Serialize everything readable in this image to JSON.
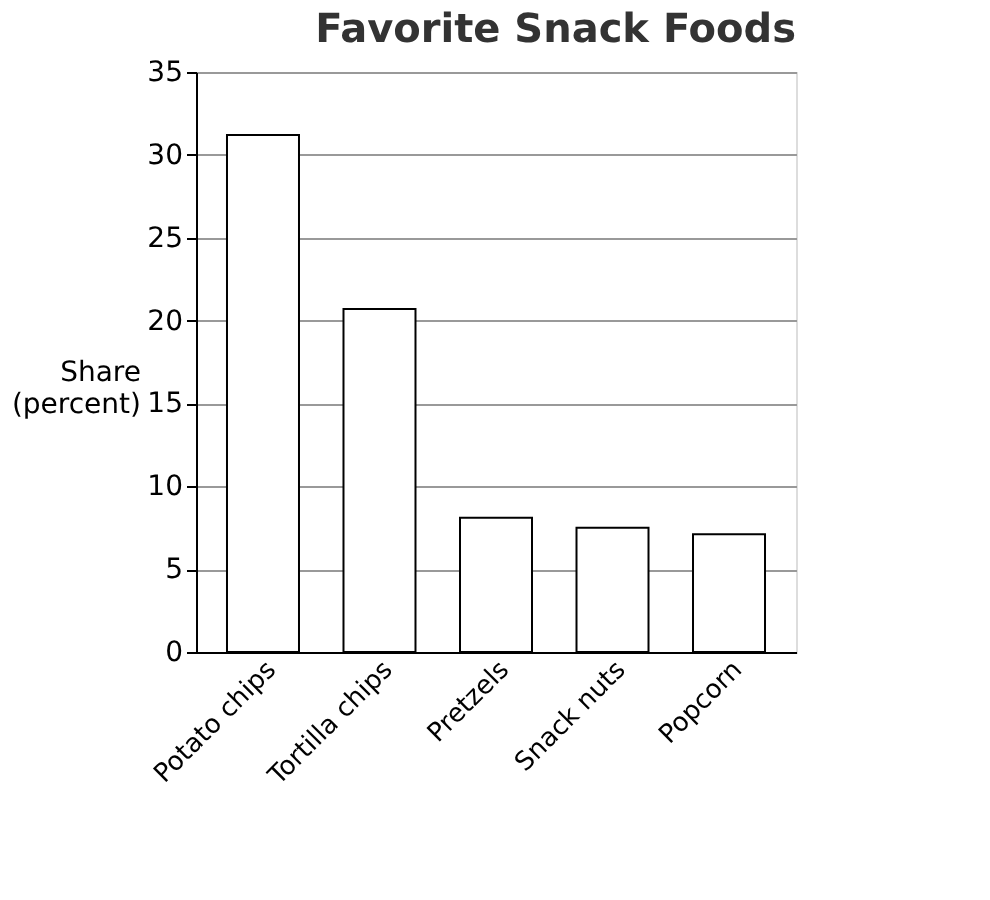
{
  "chart_data": {
    "type": "bar",
    "title": "Favorite Snack Foods",
    "ylabel": "Share (percent)",
    "categories": [
      "Potato chips",
      "Tortilla chips",
      "Pretzels",
      "Snack nuts",
      "Popcorn"
    ],
    "values": [
      31.2,
      20.7,
      8.1,
      7.5,
      7.1
    ],
    "color": "#ffffff",
    "ylim": [
      0,
      35
    ],
    "yticks": [
      0,
      5,
      10,
      15,
      20,
      25,
      30,
      35
    ],
    "grid": "y"
  }
}
